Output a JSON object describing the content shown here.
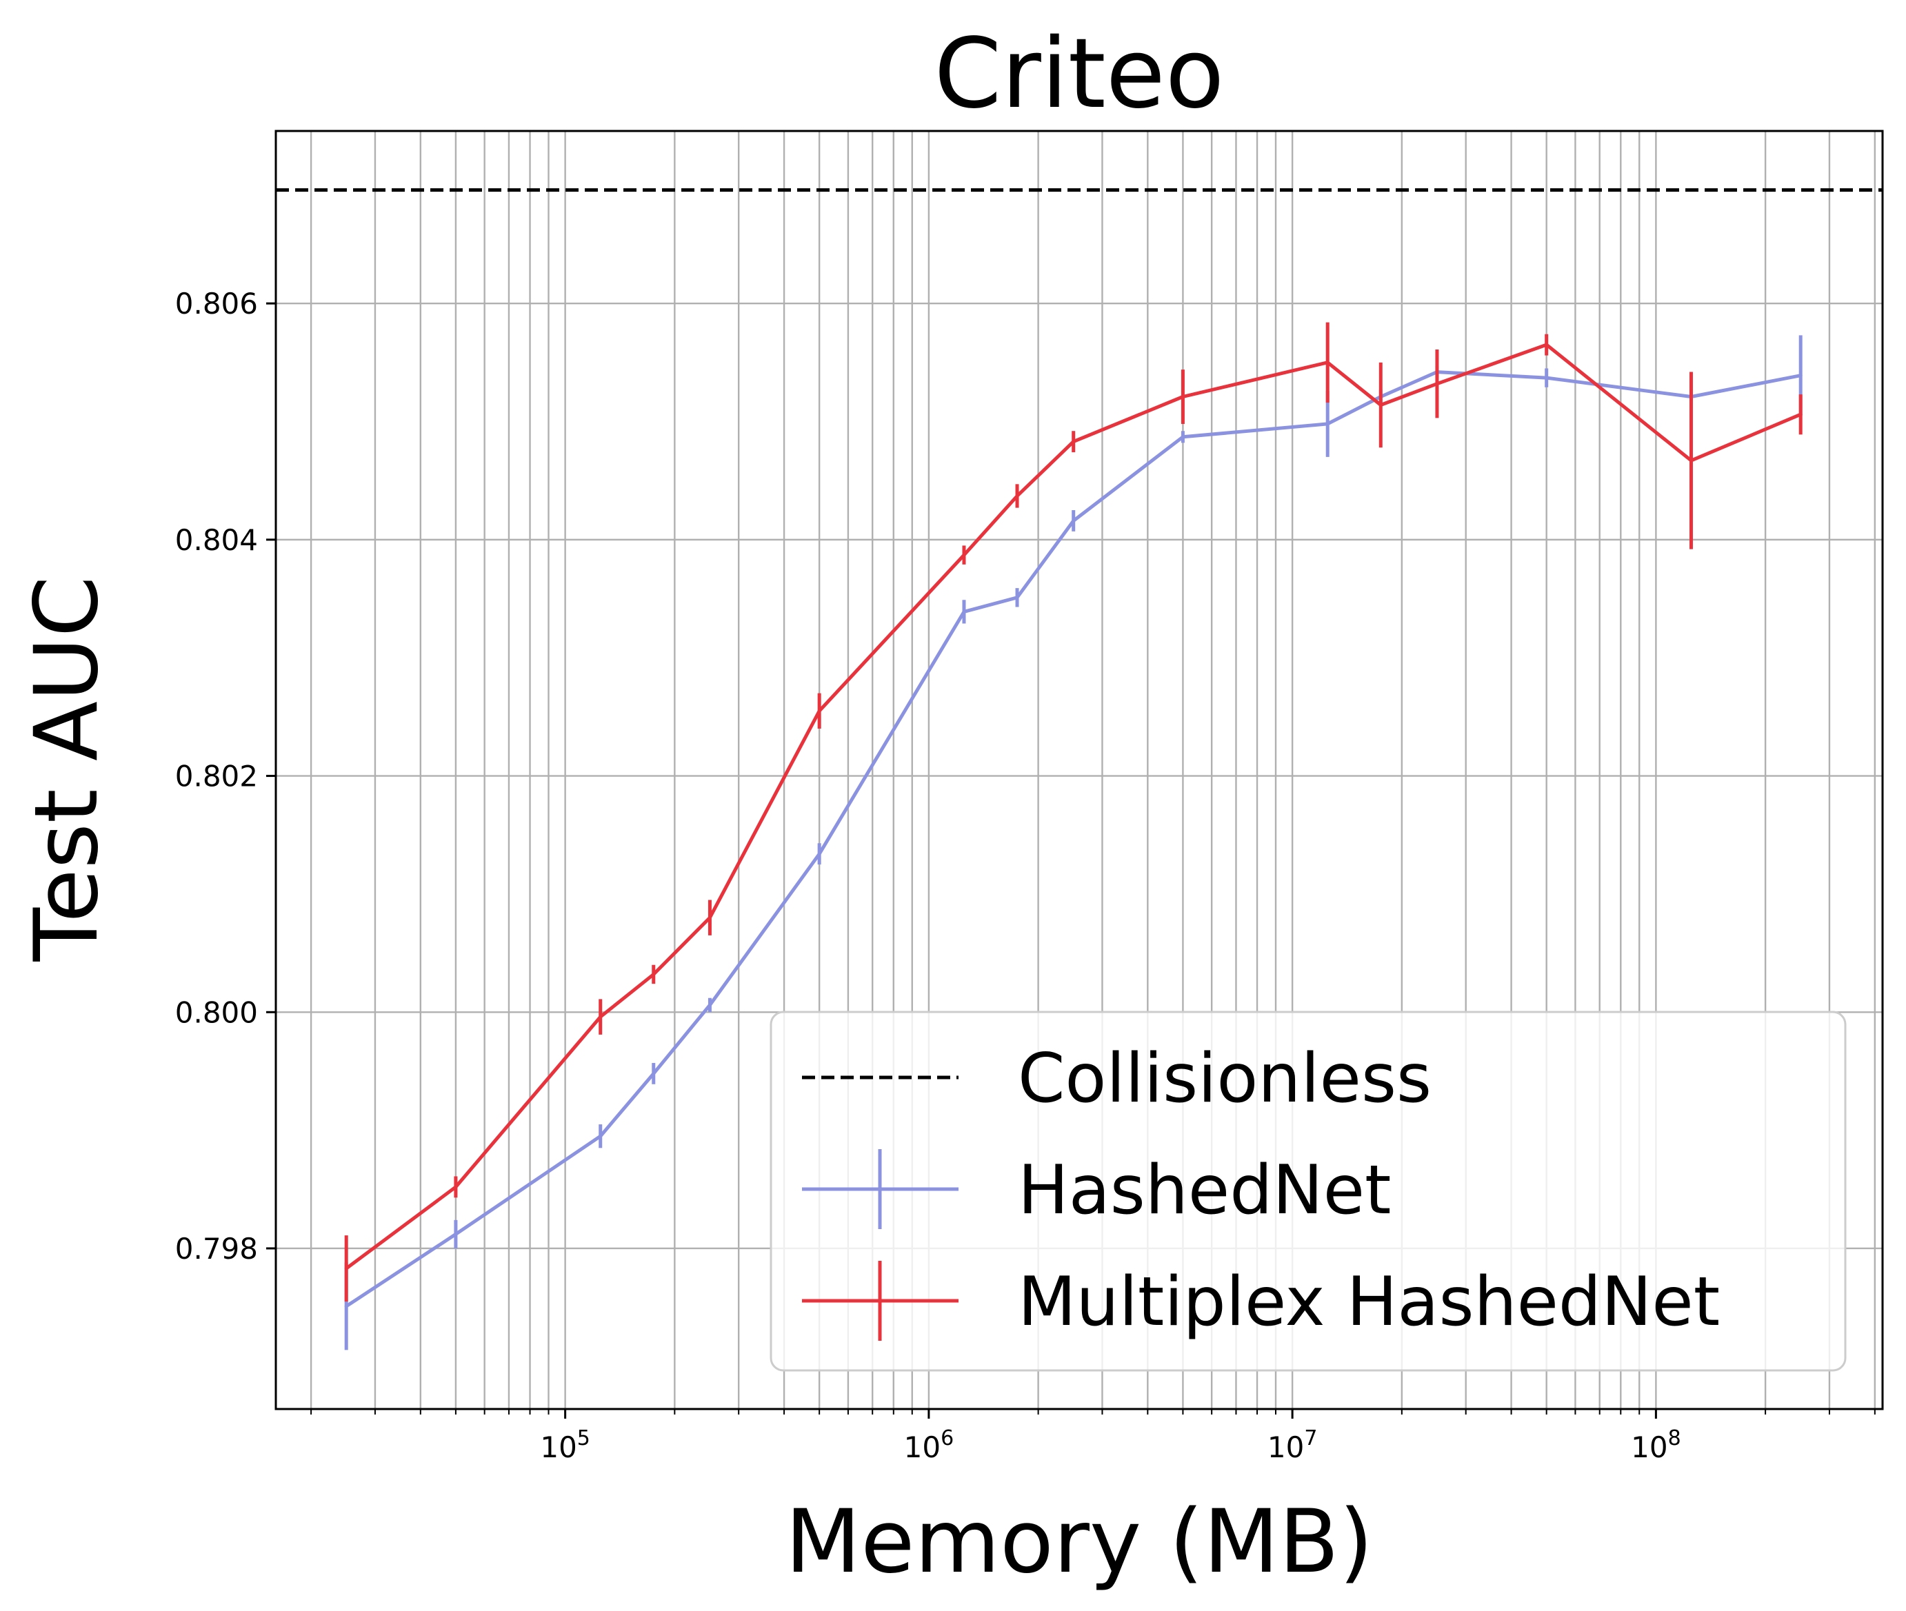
{
  "chart_data": {
    "type": "line",
    "title": "Criteo",
    "xlabel": "Memory (MB)",
    "ylabel": "Test AUC",
    "x_scale": "log",
    "xlim": [
      16000,
      420000000
    ],
    "ylim": [
      0.79664,
      0.80746
    ],
    "grid": true,
    "grid_minor_x": true,
    "legend_placement": "lower-right",
    "x_ticks": [
      {
        "value": 100000,
        "base": "10",
        "exp": "5"
      },
      {
        "value": 1000000,
        "base": "10",
        "exp": "6"
      },
      {
        "value": 10000000,
        "base": "10",
        "exp": "7"
      },
      {
        "value": 100000000,
        "base": "10",
        "exp": "8"
      }
    ],
    "y_ticks": [
      {
        "value": 0.798,
        "label": "0.798"
      },
      {
        "value": 0.8,
        "label": "0.800"
      },
      {
        "value": 0.802,
        "label": "0.802"
      },
      {
        "value": 0.804,
        "label": "0.804"
      },
      {
        "value": 0.806,
        "label": "0.806"
      }
    ],
    "reference_line": {
      "name": "Collisionless",
      "y": 0.80696,
      "color": "#000000",
      "style": "dashed"
    },
    "series": [
      {
        "name": "HashedNet",
        "color": "#8B93E1",
        "points": [
          {
            "x": 25000,
            "y": 0.79751,
            "err": 0.00037
          },
          {
            "x": 50000,
            "y": 0.79812,
            "err": 0.00012
          },
          {
            "x": 125000,
            "y": 0.79895,
            "err": 0.0001
          },
          {
            "x": 175000,
            "y": 0.79948,
            "err": 9e-05
          },
          {
            "x": 250000,
            "y": 0.80006,
            "err": 6e-05
          },
          {
            "x": 500000,
            "y": 0.80134,
            "err": 9e-05
          },
          {
            "x": 1250000,
            "y": 0.80339,
            "err": 0.0001
          },
          {
            "x": 1750000,
            "y": 0.80351,
            "err": 8e-05
          },
          {
            "x": 2500000,
            "y": 0.80416,
            "err": 9e-05
          },
          {
            "x": 5000000,
            "y": 0.80487,
            "err": 5e-05
          },
          {
            "x": 12500000,
            "y": 0.80498,
            "err": 0.00028
          },
          {
            "x": 17500000,
            "y": 0.80521,
            "err": 6e-05
          },
          {
            "x": 25000000,
            "y": 0.80542,
            "err": 5e-05
          },
          {
            "x": 50000000,
            "y": 0.80537,
            "err": 8e-05
          },
          {
            "x": 125000000,
            "y": 0.80521,
            "err": 5e-05
          },
          {
            "x": 250000000,
            "y": 0.80539,
            "err": 0.00034
          }
        ]
      },
      {
        "name": "Multiplex HashedNet",
        "color": "#E8323C",
        "points": [
          {
            "x": 25000,
            "y": 0.79783,
            "err": 0.00028
          },
          {
            "x": 50000,
            "y": 0.79852,
            "err": 9e-05
          },
          {
            "x": 125000,
            "y": 0.79996,
            "err": 0.00015
          },
          {
            "x": 175000,
            "y": 0.80032,
            "err": 8e-05
          },
          {
            "x": 250000,
            "y": 0.8008,
            "err": 0.00015
          },
          {
            "x": 500000,
            "y": 0.80255,
            "err": 0.00015
          },
          {
            "x": 1250000,
            "y": 0.80387,
            "err": 8e-05
          },
          {
            "x": 1750000,
            "y": 0.80437,
            "err": 0.0001
          },
          {
            "x": 2500000,
            "y": 0.80483,
            "err": 9e-05
          },
          {
            "x": 5000000,
            "y": 0.80521,
            "err": 0.00023
          },
          {
            "x": 12500000,
            "y": 0.8055,
            "err": 0.00034
          },
          {
            "x": 17500000,
            "y": 0.80514,
            "err": 0.00036
          },
          {
            "x": 25000000,
            "y": 0.80532,
            "err": 0.00029
          },
          {
            "x": 50000000,
            "y": 0.80565,
            "err": 9e-05
          },
          {
            "x": 125000000,
            "y": 0.80467,
            "err": 0.00075
          },
          {
            "x": 250000000,
            "y": 0.80506,
            "err": 0.00017
          }
        ]
      }
    ],
    "legend": [
      {
        "label": "Collisionless",
        "kind": "dashed",
        "color": "#000000"
      },
      {
        "label": "HashedNet",
        "kind": "errorbar",
        "color": "#8B93E1"
      },
      {
        "label": "Multiplex HashedNet",
        "kind": "errorbar",
        "color": "#E8323C"
      }
    ]
  }
}
